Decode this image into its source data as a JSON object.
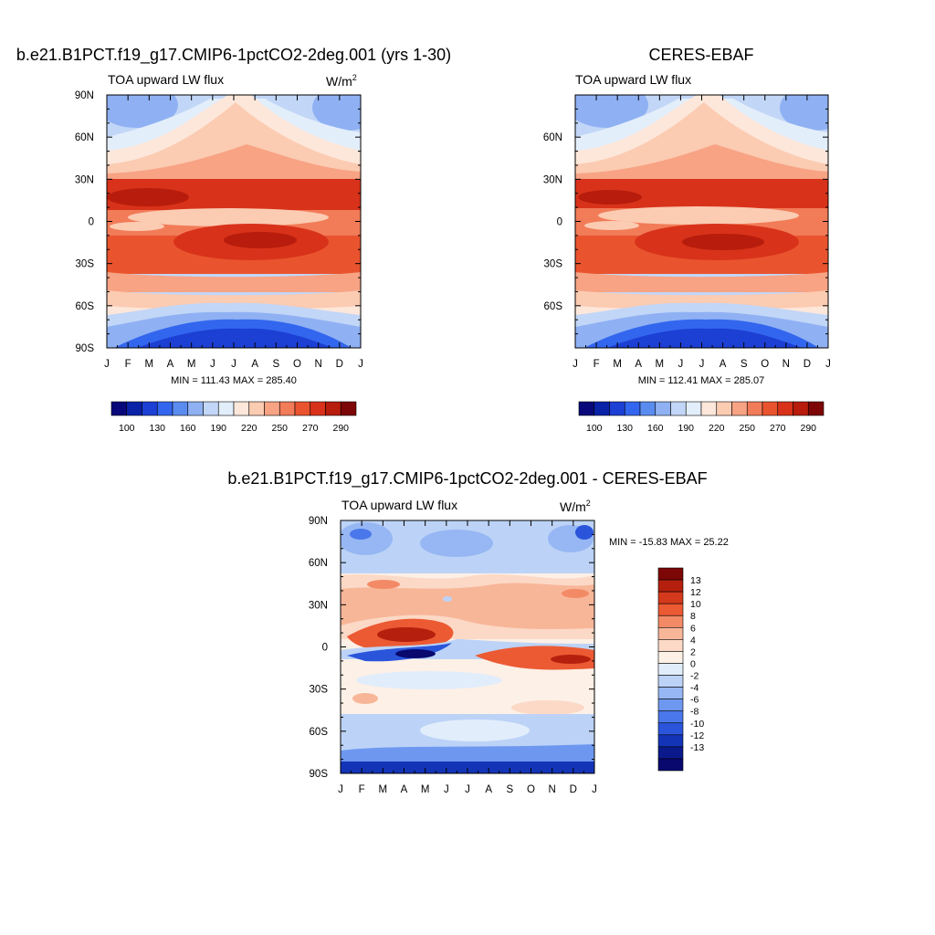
{
  "figure": {
    "panel_a_title": "b.e21.B1PCT.f19_g17.CMIP6-1pctCO2-2deg.001 (yrs 1-30)",
    "panel_b_title": "CERES-EBAF",
    "panel_c_title": "b.e21.B1PCT.f19_g17.CMIP6-1pctCO2-2deg.001 - CERES-EBAF"
  },
  "chart_data": [
    {
      "type": "heatmap",
      "title": "b.e21.B1PCT.f19_g17.CMIP6-1pctCO2-2deg.001 (yrs 1-30)",
      "subtitle": "TOA upward LW flux",
      "units": "W/m",
      "units_sup": "2",
      "x_ticks": [
        "J",
        "F",
        "M",
        "A",
        "M",
        "J",
        "J",
        "A",
        "S",
        "O",
        "N",
        "D",
        "J"
      ],
      "y_ticks": [
        "90N",
        "60N",
        "30N",
        "0",
        "30S",
        "60S",
        "90S"
      ],
      "y_range": [
        -90,
        90
      ],
      "stats": "MIN = 111.43 MAX = 285.40",
      "min": 111.43,
      "max": 285.4,
      "colorbar_labels": [
        "100",
        "130",
        "160",
        "190",
        "220",
        "250",
        "270",
        "290"
      ],
      "colorbar_position": "bottom"
    },
    {
      "type": "heatmap",
      "title": "CERES-EBAF",
      "subtitle": "TOA upward LW flux",
      "x_ticks": [
        "J",
        "F",
        "M",
        "A",
        "M",
        "J",
        "J",
        "A",
        "S",
        "O",
        "N",
        "D",
        "J"
      ],
      "y_ticks": [
        "60N",
        "30N",
        "0",
        "30S",
        "60S"
      ],
      "y_range": [
        -90,
        90
      ],
      "stats": "MIN = 112.41 MAX = 285.07",
      "min": 112.41,
      "max": 285.07,
      "colorbar_labels": [
        "100",
        "130",
        "160",
        "190",
        "220",
        "250",
        "270",
        "290"
      ],
      "colorbar_position": "bottom"
    },
    {
      "type": "heatmap",
      "title": "b.e21.B1PCT.f19_g17.CMIP6-1pctCO2-2deg.001 - CERES-EBAF",
      "subtitle": "TOA upward LW flux",
      "units": "W/m",
      "units_sup": "2",
      "x_ticks": [
        "J",
        "F",
        "M",
        "A",
        "M",
        "J",
        "J",
        "A",
        "S",
        "O",
        "N",
        "D",
        "J"
      ],
      "y_ticks": [
        "90N",
        "60N",
        "30N",
        "0",
        "30S",
        "60S",
        "90S"
      ],
      "y_range": [
        -90,
        90
      ],
      "stats": "MIN = -15.83 MAX =  25.22",
      "min": -15.83,
      "max": 25.22,
      "colorbar_labels": [
        "13",
        "12",
        "10",
        "8",
        "6",
        "4",
        "2",
        "0",
        "-2",
        "-4",
        "-6",
        "-8",
        "-10",
        "-12",
        "-13"
      ],
      "colorbar_position": "right"
    }
  ],
  "colors": {
    "abs_scale": [
      "#08087a",
      "#0a22a8",
      "#1c3fd4",
      "#3366ee",
      "#5a8cf0",
      "#8fb1f3",
      "#c2d6f7",
      "#e3eefb",
      "#fde7da",
      "#fbcbb2",
      "#f7a384",
      "#f27b58",
      "#e9542e",
      "#d8331a",
      "#b71c0c",
      "#7d0606"
    ],
    "diff_scale": [
      "#7d0606",
      "#b5200e",
      "#d5391b",
      "#ec5a33",
      "#f38a66",
      "#f8b699",
      "#fcd9c6",
      "#fdf0e6",
      "#e2edfb",
      "#bcd3f7",
      "#96b7f3",
      "#6e98f0",
      "#4a78eb",
      "#2a55db",
      "#1434b8",
      "#0a1a8c",
      "#08086e"
    ]
  }
}
